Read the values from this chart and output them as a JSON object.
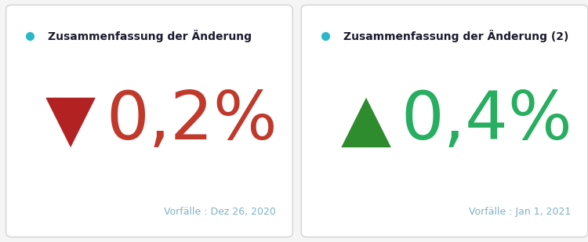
{
  "panel1": {
    "title": "Zusammenfassung der Änderung",
    "value": "0,2%",
    "direction": "down",
    "arrow": "▼",
    "value_color": "#c0392b",
    "arrow_color": "#b22222",
    "footnote": "Vorfälle : Dez 26, 2020",
    "footnote_color": "#7fb3c8"
  },
  "panel2": {
    "title": "Zusammenfassung der Änderung (2)",
    "value": "0,4%",
    "direction": "up",
    "arrow": "▲",
    "value_color": "#27ae60",
    "arrow_color": "#2e8b2e",
    "footnote": "Vorfälle : Jan 1, 2021",
    "footnote_color": "#7fb3c8"
  },
  "dot_color": "#29b8c8",
  "title_color": "#1a1a2e",
  "background_color": "#ffffff",
  "border_color": "#d8d8d8",
  "outer_background": "#f5f5f5",
  "title_fontsize": 10,
  "arrow_fontsize": 60,
  "value_fontsize": 62,
  "footnote_fontsize": 9
}
